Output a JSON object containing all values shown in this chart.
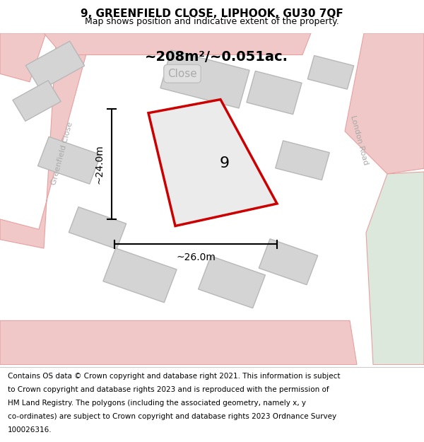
{
  "title": "9, GREENFIELD CLOSE, LIPHOOK, GU30 7QF",
  "subtitle": "Map shows position and indicative extent of the property.",
  "area_label": "~208m²/~0.051ac.",
  "plot_number": "9",
  "dim_width": "~26.0m",
  "dim_height": "~24.0m",
  "road_label_left": "Greenfield Close",
  "road_label_right": "London Road",
  "street_label": "Close",
  "bg_map_color": "#f5f4f2",
  "road_color": "#f0c8c8",
  "road_stroke": "#e8a0a0",
  "plot_outline_color": "#cc0000",
  "building_color": "#d4d4d4",
  "building_stroke": "#b8b8b8",
  "title_fontsize": 11,
  "subtitle_fontsize": 9,
  "footer_fontsize": 7.5,
  "footer_lines": [
    "Contains OS data © Crown copyright and database right 2021. This information is subject",
    "to Crown copyright and database rights 2023 and is reproduced with the permission of",
    "HM Land Registry. The polygons (including the associated geometry, namely x, y",
    "co-ordinates) are subject to Crown copyright and database rights 2023 Ordnance Survey",
    "100026316."
  ]
}
